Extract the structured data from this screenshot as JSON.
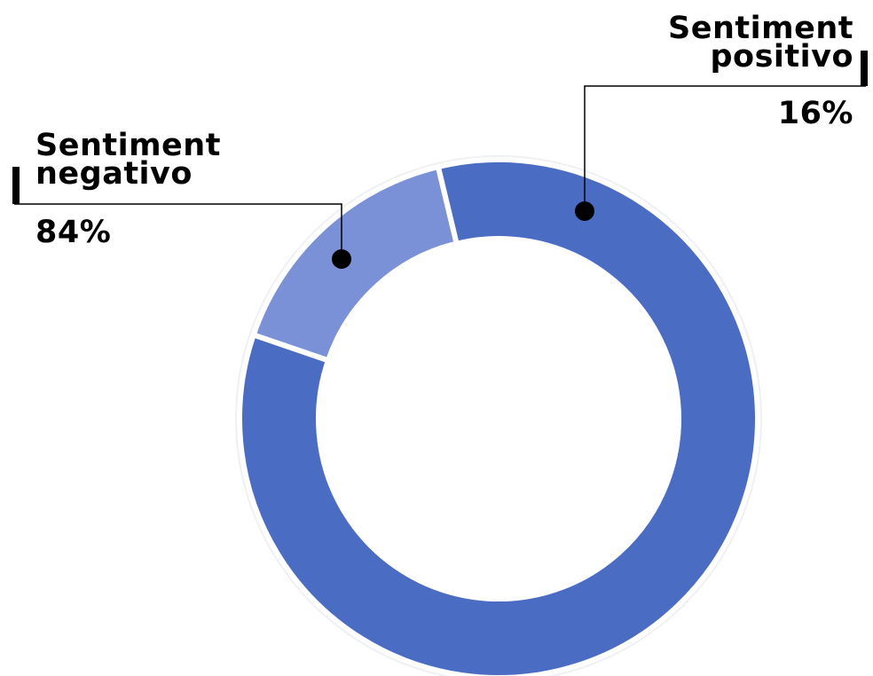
{
  "chart_data": {
    "type": "pie",
    "style": "donut",
    "categories": [
      "Sentiment negativo",
      "Sentiment positivo"
    ],
    "values": [
      84,
      16
    ],
    "value_labels": [
      "84%",
      "16%"
    ],
    "colors": [
      "#4a6cc3",
      "#7a91d8"
    ],
    "title": ""
  },
  "labels": {
    "negative": {
      "line1": "Sentiment",
      "line2": "negativo",
      "pct": "84%"
    },
    "positive": {
      "line1": "Sentiment",
      "line2": "positivo",
      "pct": "16%"
    }
  }
}
